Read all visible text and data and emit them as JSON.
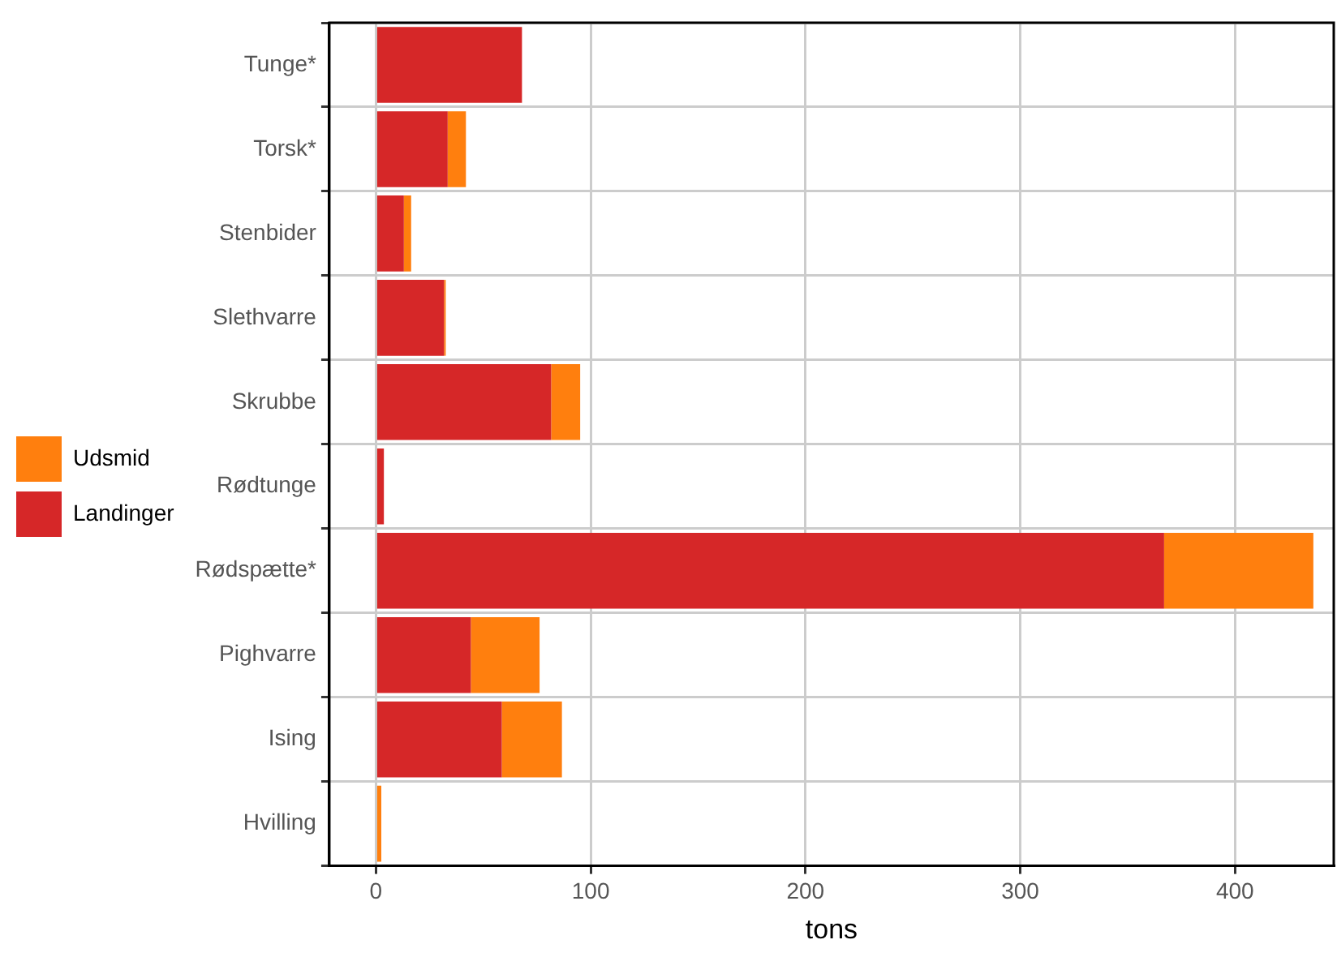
{
  "chart_data": {
    "type": "bar",
    "orientation": "horizontal",
    "stacked": true,
    "xlabel": "tons",
    "categories": [
      "Tunge*",
      "Torsk*",
      "Stenbider",
      "Slethvarre",
      "Skrubbe",
      "Rødtunge",
      "Rødspætte*",
      "Pighvarre",
      "Ising",
      "Hvilling"
    ],
    "series": [
      {
        "name": "Landinger",
        "color": "#d62728",
        "values": [
          68,
          33.4,
          13,
          31.7,
          81.6,
          3.7,
          367,
          44.2,
          58.6,
          null
        ]
      },
      {
        "name": "Udsmid",
        "color": "#ff7f0e",
        "values": [
          0,
          8.5,
          3.4,
          0.8,
          13.5,
          0,
          69.5,
          32,
          28,
          2.5
        ]
      }
    ],
    "xlim": [
      -21.7,
      446
    ],
    "xticks": [
      0,
      100,
      200,
      300,
      400
    ],
    "grid": true,
    "legend": "left"
  }
}
